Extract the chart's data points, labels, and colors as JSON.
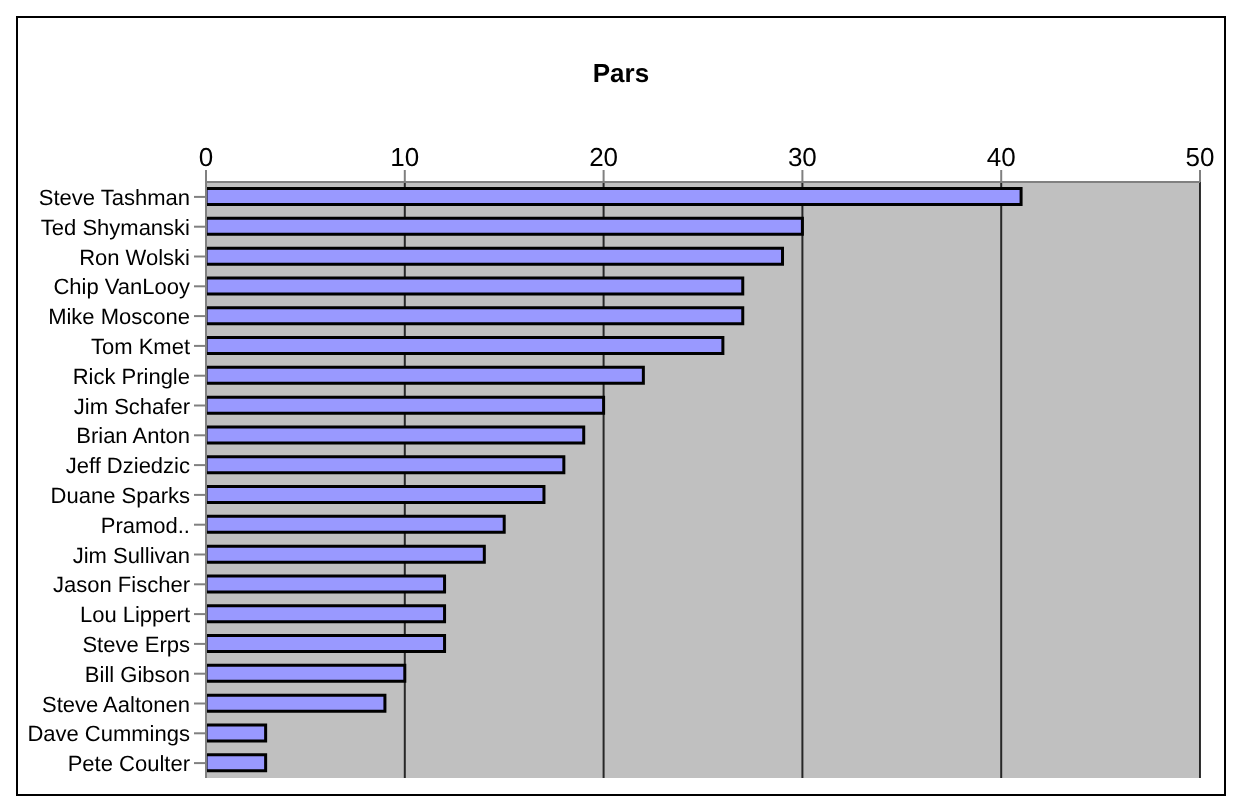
{
  "chart_data": {
    "type": "bar",
    "orientation": "horizontal",
    "title": "Pars",
    "categories": [
      "Steve Tashman",
      "Ted Shymanski",
      "Ron Wolski",
      "Chip VanLooy",
      "Mike Moscone",
      "Tom Kmet",
      "Rick Pringle",
      "Jim Schafer",
      "Brian Anton",
      "Jeff Dziedzic",
      "Duane Sparks",
      "Pramod..",
      "Jim Sullivan",
      "Jason Fischer",
      "Lou Lippert",
      "Steve Erps",
      "Bill Gibson",
      "Steve Aaltonen",
      "Dave Cummings",
      "Pete Coulter"
    ],
    "values": [
      41,
      30,
      29,
      27,
      27,
      26,
      22,
      20,
      19,
      18,
      17,
      15,
      14,
      12,
      12,
      12,
      10,
      9,
      3,
      3
    ],
    "color": "#9999ff",
    "xlim": [
      0,
      50
    ],
    "xticks": [
      0,
      10,
      20,
      30,
      40,
      50
    ],
    "grid": "x"
  }
}
